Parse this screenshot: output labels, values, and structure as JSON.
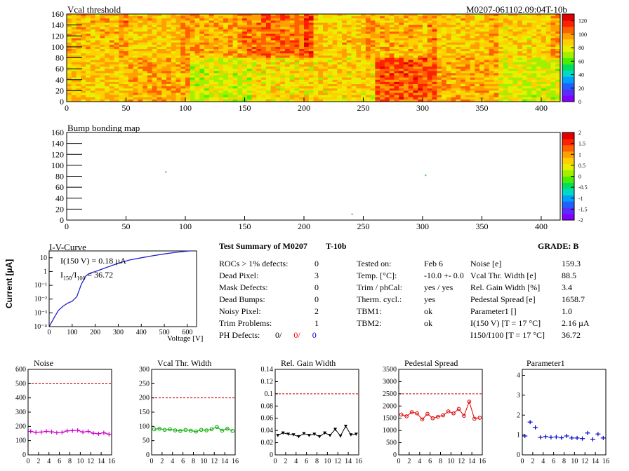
{
  "header": {
    "map_title": "Vcal threshold",
    "module_id": "M0207-061102.09:04T-10b",
    "bump_title": "Bump bonding map"
  },
  "maps": {
    "x_ticks": [
      "0",
      "50",
      "100",
      "150",
      "200",
      "250",
      "300",
      "350",
      "400"
    ],
    "y_ticks": [
      "0",
      "20",
      "40",
      "60",
      "80",
      "100",
      "120",
      "140",
      "160"
    ],
    "vcal_palette_ticks": [
      "0",
      "20",
      "40",
      "60",
      "80",
      "100",
      "120"
    ],
    "bump_palette_ticks": [
      "-2",
      "-1.5",
      "-1",
      "-0.5",
      "0",
      "0.5",
      "1",
      "1.5",
      "2"
    ],
    "bump_points": [
      [
        83,
        89
      ],
      [
        240,
        12
      ],
      [
        302,
        83
      ]
    ]
  },
  "iv": {
    "title": "I-V-Curve",
    "ylabel": "Current [µA]",
    "xlabel": "Voltage [V]",
    "x_ticks": [
      "0",
      "100",
      "200",
      "300",
      "400",
      "500",
      "600"
    ],
    "y_ticks": [
      "10",
      "1",
      "10⁻¹",
      "10⁻²",
      "10⁻³",
      "10⁻⁴"
    ],
    "annot1": "I(150 V) = 0.18 µA",
    "annot2_pre": "I",
    "annot2_sub1": "150",
    "annot2_mid": "/I",
    "annot2_sub2": "100",
    "annot2_post": " = 36.72"
  },
  "summary": {
    "title": "Test Summary of M0207",
    "tag": "T-10b",
    "grade": "GRADE:  B",
    "left": [
      {
        "label": "ROCs > 1% defects:",
        "value": "0"
      },
      {
        "label": "Dead Pixel:",
        "value": "3"
      },
      {
        "label": "Mask Defects:",
        "value": "0"
      },
      {
        "label": "Dead Bumps:",
        "value": "0"
      },
      {
        "label": "Noisy Pixel:",
        "value": "2"
      },
      {
        "label": "Trim Problems:",
        "value": "1"
      }
    ],
    "ph_label": "PH Defects:",
    "ph_values": [
      "0/",
      "0/",
      "0"
    ],
    "ph_colors": [
      "#000000",
      "#ff0000",
      "#0000cc"
    ],
    "middle": [
      {
        "label": "Tested on:",
        "value": "Feb 6"
      },
      {
        "label": "Temp. [°C]:",
        "value": "-10.0 +- 0.0"
      },
      {
        "label": "Trim / phCal:",
        "value": "yes / yes"
      },
      {
        "label": "Therm. cycl.:",
        "value": "yes"
      },
      {
        "label": "TBM1:",
        "value": "ok"
      },
      {
        "label": "TBM2:",
        "value": "ok"
      }
    ],
    "right": [
      {
        "label": "Noise [e]",
        "value": "159.3"
      },
      {
        "label": "Vcal Thr. Width [e]",
        "value": "88.5"
      },
      {
        "label": "Rel. Gain Width [%]",
        "value": "3.4"
      },
      {
        "label": "Pedestal Spread [e]",
        "value": "1658.7"
      },
      {
        "label": "Parameter1 []",
        "value": "1.0"
      },
      {
        "label": "I(150 V) [T = 17 °C]",
        "value": "2.16 µA"
      },
      {
        "label": "I150/I100  [T = 17 °C]",
        "value": "36.72"
      }
    ]
  },
  "chart_data": [
    {
      "type": "heatmap",
      "title": "Vcal threshold",
      "x_range": [
        0,
        416
      ],
      "y_range": [
        0,
        160
      ],
      "z_range": [
        0,
        130
      ],
      "note_rocs": 16
    },
    {
      "type": "heatmap",
      "title": "Bump bonding map",
      "x_range": [
        0,
        416
      ],
      "y_range": [
        0,
        160
      ],
      "z_range": [
        -2,
        2
      ]
    },
    {
      "type": "line",
      "title": "I-V-Curve",
      "xlabel": "Voltage [V]",
      "ylabel": "Current [µA]",
      "xlim": [
        0,
        640
      ],
      "ylim_log10": [
        -4,
        1.5
      ],
      "x": [
        0,
        20,
        40,
        60,
        80,
        100,
        120,
        140,
        160,
        180,
        200,
        250,
        300,
        350,
        400,
        450,
        500,
        550,
        600,
        620
      ],
      "y": [
        0.0001,
        0.0004,
        0.0015,
        0.003,
        0.005,
        0.007,
        0.015,
        0.12,
        0.5,
        0.8,
        1.0,
        2.0,
        4.0,
        7.0,
        10.0,
        14.0,
        19.0,
        25.0,
        30.0,
        32.0
      ]
    },
    {
      "type": "scatter",
      "title": "Noise",
      "xlim": [
        0,
        16
      ],
      "ylim": [
        0,
        600
      ],
      "y_ticks": [
        "0",
        "100",
        "200",
        "300",
        "400",
        "500",
        "600"
      ],
      "limit": 500,
      "color": "#cc00cc",
      "marker": "cross",
      "values": [
        165,
        158,
        160,
        165,
        162,
        155,
        158,
        168,
        170,
        172,
        160,
        165,
        152,
        148,
        155,
        145
      ]
    },
    {
      "type": "line",
      "title": "Vcal Thr. Width",
      "xlim": [
        0,
        16
      ],
      "ylim": [
        0,
        300
      ],
      "y_ticks": [
        "0",
        "50",
        "100",
        "150",
        "200",
        "250",
        "300"
      ],
      "limit": 200,
      "color": "#00aa00",
      "marker": "circle",
      "values": [
        90,
        92,
        88,
        90,
        86,
        84,
        88,
        85,
        82,
        88,
        86,
        90,
        98,
        85,
        92,
        84
      ]
    },
    {
      "type": "line",
      "title": "Rel. Gain Width",
      "xlim": [
        0,
        16
      ],
      "ylim": [
        0,
        0.14
      ],
      "y_ticks": [
        "0",
        "0.02",
        "0.04",
        "0.06",
        "0.08",
        "0.1",
        "0.12",
        "0.14"
      ],
      "limit": 0.1,
      "color": "#000000",
      "marker": "triangle",
      "values": [
        0.032,
        0.036,
        0.034,
        0.033,
        0.03,
        0.035,
        0.032,
        0.034,
        0.03,
        0.036,
        0.032,
        0.042,
        0.031,
        0.047,
        0.033,
        0.034
      ]
    },
    {
      "type": "line",
      "title": "Pedestal Spread",
      "xlim": [
        0,
        16
      ],
      "ylim": [
        0,
        3500
      ],
      "y_ticks": [
        "0",
        "500",
        "1000",
        "1500",
        "2000",
        "2500",
        "3000",
        "3500"
      ],
      "limit": 2500,
      "color": "#dd0000",
      "marker": "circle",
      "values": [
        1650,
        1580,
        1750,
        1700,
        1450,
        1680,
        1500,
        1560,
        1620,
        1780,
        1700,
        1880,
        1600,
        2180,
        1480,
        1520
      ]
    },
    {
      "type": "scatter",
      "title": "Parameter1",
      "xlim": [
        0,
        16
      ],
      "ylim": [
        0,
        4.3
      ],
      "y_ticks": [
        "0",
        "1",
        "2",
        "3",
        "4"
      ],
      "limit": null,
      "color": "#0000cc",
      "marker": "cross",
      "values": [
        0.95,
        1.65,
        1.38,
        0.88,
        0.92,
        0.88,
        0.9,
        0.86,
        0.95,
        0.85,
        0.85,
        0.82,
        1.1,
        0.78,
        1.05,
        0.85
      ]
    }
  ],
  "palette_colors": [
    "#7f00ff",
    "#5a2cff",
    "#2060ff",
    "#00a0ff",
    "#00d8c8",
    "#00e060",
    "#48f000",
    "#a0f000",
    "#e8f000",
    "#ffd000",
    "#ffa000",
    "#ff6000",
    "#ff2000",
    "#e00000"
  ],
  "small_chart_x_ticks": [
    "0",
    "2",
    "4",
    "6",
    "8",
    "10",
    "12",
    "14",
    "16"
  ]
}
